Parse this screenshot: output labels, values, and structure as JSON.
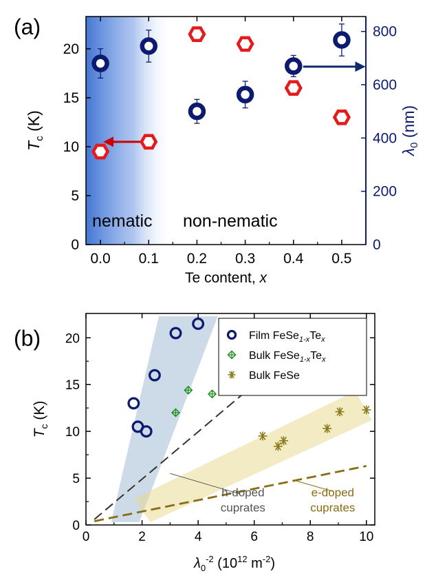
{
  "panels": {
    "a": {
      "label": "(a)"
    },
    "b": {
      "label": "(b)"
    }
  },
  "colors": {
    "navy": "#0d1b6e",
    "red": "#e41a1c",
    "green": "#1a8c1a",
    "olive": "#8a7a1a",
    "nematic_shade": "#3b6fd1",
    "blue_band": "#9bb6d2",
    "yellow_band": "#e8d88a",
    "dashed_dark": "#333333",
    "dashed_olive": "#8a6d12"
  },
  "chart_data": [
    {
      "panel": "a",
      "type": "scatter",
      "xlabel": {
        "main": "Te content, ",
        "var": "x"
      },
      "ylabel_left": {
        "main": "T",
        "sub": "c",
        "rest": " (K)"
      },
      "ylabel_right": {
        "main": "λ",
        "sub": "0",
        "rest": " (nm)"
      },
      "xlim": [
        -0.03,
        0.55
      ],
      "ylim_left": [
        0,
        23.3
      ],
      "ylim_right": [
        0,
        856
      ],
      "xticks": [
        0.0,
        0.1,
        0.2,
        0.3,
        0.4,
        0.5
      ],
      "xtick_labels": [
        "0.0",
        "0.1",
        "0.2",
        "0.3",
        "0.4",
        "0.5"
      ],
      "yticks_left": [
        0,
        5,
        10,
        15,
        20
      ],
      "ytick_labels_left": [
        "0",
        "5",
        "10",
        "15",
        "20"
      ],
      "yticks_right": [
        0,
        200,
        400,
        600,
        800
      ],
      "ytick_labels_right": [
        "0",
        "200",
        "400",
        "600",
        "800"
      ],
      "annotations": [
        "nematic",
        "non-nematic"
      ],
      "nematic_region": [
        -0.03,
        0.15
      ],
      "series": [
        {
          "axis": "left",
          "marker": "hexagon-open",
          "color": "#e41a1c",
          "x": [
            0.0,
            0.1,
            0.2,
            0.3,
            0.4,
            0.5
          ],
          "y": [
            9.5,
            10.5,
            21.5,
            20.5,
            16.0,
            13.0
          ]
        },
        {
          "axis": "right",
          "marker": "circle-thick",
          "color": "#0d1b6e",
          "x": [
            0.0,
            0.1,
            0.2,
            0.3,
            0.4,
            0.5
          ],
          "y": [
            680,
            745,
            500,
            563,
            670,
            768
          ],
          "yerr": [
            55,
            60,
            45,
            50,
            40,
            60
          ]
        }
      ],
      "arrows": [
        {
          "from": [
            0.09,
            10.5
          ],
          "to": [
            0.01,
            10.5
          ],
          "axis": "left",
          "color": "#cc0000"
        },
        {
          "from": [
            0.42,
            668
          ],
          "to": [
            0.545,
            668
          ],
          "axis": "right",
          "color": "#0d2a6e"
        }
      ]
    },
    {
      "panel": "b",
      "type": "scatter",
      "xlabel": {
        "main": "λ",
        "sub": "0",
        "sup": "-2",
        "rest": " (10",
        "sup2": "12",
        "rest2": " m",
        "sup3": "-2",
        "rest3": ")"
      },
      "ylabel": {
        "main": "T",
        "sub": "c",
        "rest": " (K)"
      },
      "xlim": [
        0,
        10.3
      ],
      "ylim": [
        0,
        22.6
      ],
      "xticks": [
        0,
        2,
        4,
        6,
        8,
        10
      ],
      "xtick_labels": [
        "0",
        "2",
        "4",
        "6",
        "8",
        "10"
      ],
      "yticks": [
        0,
        5,
        10,
        15,
        20
      ],
      "ytick_labels": [
        "0",
        "5",
        "10",
        "15",
        "20"
      ],
      "legend": {
        "position": "top-right",
        "entries": [
          {
            "text": "Film FeSe",
            "sub": "1-x",
            "text2": "Te",
            "sub2": "x",
            "marker": "circle-open",
            "color": "#0d1b6e"
          },
          {
            "text": "Bulk FeSe",
            "sub": "1-x",
            "text2": "Te",
            "sub2": "x",
            "marker": "diamond-plus",
            "color": "#1a8c1a"
          },
          {
            "text": "Bulk FeSe",
            "sub": "",
            "text2": "",
            "sub2": "",
            "marker": "asterisk",
            "color": "#8a7a1a"
          }
        ]
      },
      "series": [
        {
          "name": "Film FeSe1-xTex",
          "marker": "circle-open",
          "color": "#0d1b6e",
          "x": [
            4.0,
            3.2,
            2.45,
            1.7,
            1.85,
            2.15
          ],
          "y": [
            21.5,
            20.5,
            16.0,
            13.0,
            10.5,
            10.0
          ]
        },
        {
          "name": "Bulk FeSe1-xTex",
          "marker": "diamond-plus",
          "color": "#1a8c1a",
          "x": [
            3.65,
            4.5,
            3.2
          ],
          "y": [
            14.4,
            14.0,
            12.0
          ]
        },
        {
          "name": "Bulk FeSe",
          "marker": "asterisk",
          "color": "#8a7a1a",
          "x": [
            6.3,
            6.85,
            7.05,
            8.6,
            9.05,
            10.0
          ],
          "y": [
            9.5,
            8.4,
            9.0,
            10.3,
            12.1,
            12.3
          ]
        }
      ],
      "lines": [
        {
          "name": "h-doped cuprates",
          "x": [
            0.3,
            5.6
          ],
          "y": [
            0.6,
            14.0
          ],
          "color": "#333333"
        },
        {
          "name": "e-doped cuprates",
          "x": [
            0.3,
            10.0
          ],
          "y": [
            0.4,
            6.3
          ],
          "color": "#8a6d12"
        }
      ],
      "line_labels": [
        {
          "lines": [
            "h-doped",
            "cuprates"
          ],
          "x": 5.6,
          "y": 2.6,
          "color": "#555555"
        },
        {
          "lines": [
            "e-doped",
            "cuprates"
          ],
          "x": 8.8,
          "y": 2.6,
          "color": "#8a6d12"
        }
      ],
      "bands": [
        {
          "color": "#9bb6d2",
          "polygon": [
            [
              0.9,
              0.3
            ],
            [
              2.6,
              22.3
            ],
            [
              4.7,
              22.3
            ],
            [
              1.9,
              0.3
            ]
          ]
        },
        {
          "color": "#e8d88a",
          "polygon": [
            [
              1.7,
              2.8
            ],
            [
              9.6,
              14.3
            ],
            [
              10.2,
              11.2
            ],
            [
              2.3,
              0.3
            ]
          ]
        }
      ]
    }
  ]
}
